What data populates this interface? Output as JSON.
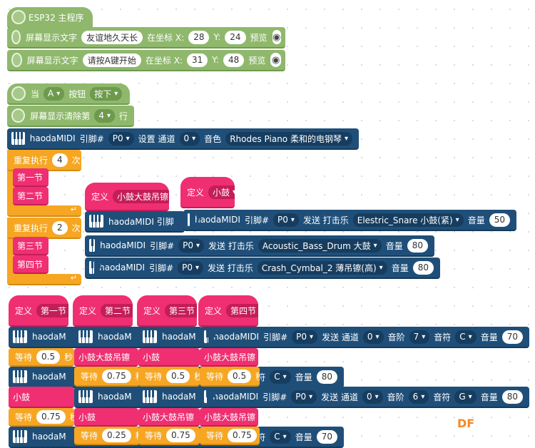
{
  "main_program": {
    "title": "ESP32 主程序",
    "screen_text_label": "屏幕显示文字",
    "at_coord": "在坐标 X:",
    "y_label": "Y:",
    "preview": "预览",
    "line1": {
      "text": "友谊地久天长",
      "x": "28",
      "y": "24"
    },
    "line2": {
      "text": "请按A键开始",
      "x": "31",
      "y": "48"
    }
  },
  "button_event": {
    "when": "当",
    "key": "A",
    "button": "按钮",
    "state": "按下",
    "clear_prefix": "屏幕显示清除第",
    "clear_row": "4",
    "clear_suffix": "行"
  },
  "midi": {
    "name": "haodaMIDI",
    "pin_label": "引脚#",
    "pin": "P0",
    "set_channel": "设置 通道",
    "channel": "0",
    "timbre_label": "音色",
    "timbre": "Rhodes Piano 柔和的电钢琴",
    "send_percussion": "发送 打击乐",
    "volume": "音量",
    "send_channel": "发送 通道",
    "pitch_label": "音阶",
    "note_label": "音符"
  },
  "repeat1": {
    "label": "重复执行",
    "times": "4",
    "unit": "次",
    "calls": [
      "第一节",
      "第二节"
    ]
  },
  "repeat2": {
    "label": "重复执行",
    "times": "2",
    "unit": "次",
    "calls": [
      "第三节",
      "第四节"
    ]
  },
  "define_label": "定义",
  "defs": {
    "d1": "小鼓大鼓吊镲",
    "d2": "小鼓",
    "d3": "第一节",
    "d4": "第二节",
    "d5": "第三节",
    "d6": "第四节"
  },
  "perc": {
    "p1": {
      "drum": "Elestric_Snare 小鼓(紧)",
      "vol": "50"
    },
    "p2": {
      "drum": "Acoustic_Bass_Drum 大鼓",
      "vol": "80"
    },
    "p3": {
      "drum": "Crash_Cymbal_2 薄吊镲(高)",
      "vol": "80"
    }
  },
  "notes": {
    "n1": {
      "channel": "0",
      "pitch": "7",
      "note": "C",
      "vol": "70"
    },
    "n2": {
      "note": "C",
      "vol": "80"
    },
    "n3": {
      "channel": "0",
      "pitch": "6",
      "note": "G",
      "vol": "80"
    },
    "n4": {
      "note": "C",
      "vol": "70"
    }
  },
  "wait": {
    "label": "等待",
    "unit": "秒"
  },
  "waits": [
    "0.5",
    "0.75",
    "0.25"
  ],
  "calls": {
    "c1": "小鼓大鼓吊镲",
    "c2": "小鼓"
  },
  "partial": {
    "truncated": "haodaM",
    "truncated2": "haodaMIDI 引脚",
    "fu": "符"
  },
  "watermark": "DF"
}
